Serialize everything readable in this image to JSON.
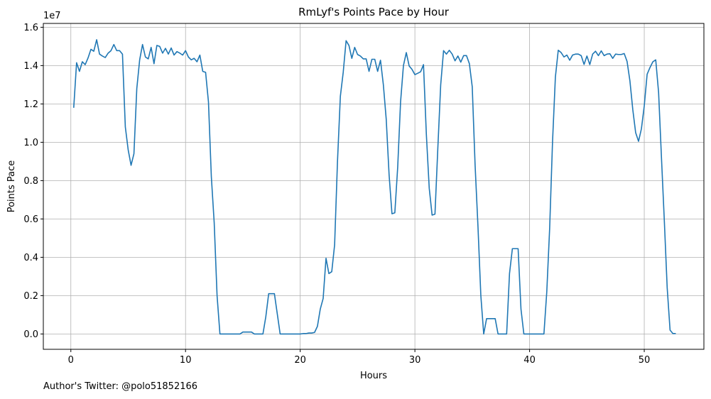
{
  "chart_data": {
    "type": "line",
    "title": "RmLyf's Points Pace by Hour",
    "xlabel": "Hours",
    "ylabel": "Points Pace",
    "y_offset_label": "1e7",
    "xlim": [
      -2.4,
      55.2
    ],
    "ylim": [
      -800000,
      16200000
    ],
    "x_ticks": [
      0,
      10,
      20,
      30,
      40,
      50
    ],
    "y_ticks": [
      0,
      2000000,
      4000000,
      6000000,
      8000000,
      10000000,
      12000000,
      14000000,
      16000000
    ],
    "x_tick_labels": [
      "0",
      "10",
      "20",
      "30",
      "40",
      "50"
    ],
    "y_tick_labels": [
      "0.0",
      "0.2",
      "0.4",
      "0.6",
      "0.8",
      "1.0",
      "1.2",
      "1.4",
      "1.6"
    ],
    "grid": true,
    "line_color": "#1f77b4",
    "series": [
      {
        "x": [
          0.25,
          0.5,
          0.75,
          1.0,
          1.25,
          1.5,
          1.75,
          2.0,
          2.25,
          2.5,
          2.75,
          3.0,
          3.25,
          3.5,
          3.75,
          4.0,
          4.25,
          4.5,
          4.75,
          5.0,
          5.25,
          5.5,
          5.75,
          6.0,
          6.25,
          6.5,
          6.75,
          7.0,
          7.25,
          7.5,
          7.75,
          8.0,
          8.25,
          8.5,
          8.75,
          9.0,
          9.25,
          9.5,
          9.75,
          10.0,
          10.25,
          10.5,
          10.75,
          11.0,
          11.25,
          11.5,
          11.75,
          12.0,
          12.25,
          12.5,
          12.75,
          13.0,
          14.5,
          14.75,
          15.0,
          15.25,
          15.5,
          15.75,
          16.0,
          16.25,
          16.5,
          16.75,
          17.0,
          17.25,
          17.5,
          17.75,
          18.0,
          18.25,
          19.5,
          19.75,
          20.0,
          20.25,
          20.5,
          20.75,
          21.0,
          21.25,
          21.5,
          21.75,
          22.0,
          22.25,
          22.5,
          22.75,
          23.0,
          23.25,
          23.5,
          23.75,
          24.0,
          24.25,
          24.5,
          24.75,
          25.0,
          25.25,
          25.5,
          25.75,
          26.0,
          26.25,
          26.5,
          26.75,
          27.0,
          27.25,
          27.5,
          27.75,
          28.0,
          28.25,
          28.5,
          28.75,
          29.0,
          29.25,
          29.5,
          29.75,
          30.0,
          30.25,
          30.5,
          30.75,
          31.0,
          31.25,
          31.5,
          31.75,
          32.0,
          32.25,
          32.5,
          32.75,
          33.0,
          33.25,
          33.5,
          33.75,
          34.0,
          34.25,
          34.5,
          34.75,
          35.0,
          35.25,
          35.5,
          35.75,
          36.0,
          36.25,
          36.5,
          36.75,
          37.0,
          37.25,
          37.5,
          37.75,
          38.0,
          38.25,
          38.5,
          38.75,
          39.0,
          39.25,
          39.5,
          39.75,
          40.0,
          40.25,
          40.5,
          40.75,
          41.0,
          41.25,
          41.5,
          41.75,
          42.0,
          42.25,
          42.5,
          42.75,
          43.0,
          43.25,
          43.5,
          43.75,
          44.0,
          44.25,
          44.5,
          44.75,
          45.0,
          45.25,
          45.5,
          45.75,
          46.0,
          46.25,
          46.5,
          46.75,
          47.0,
          47.25,
          47.5,
          47.75,
          48.0,
          48.25,
          48.5,
          48.75,
          49.0,
          49.25,
          49.5,
          49.75,
          50.0,
          50.25,
          50.5,
          50.75,
          51.0,
          51.25,
          51.5,
          51.75,
          52.0,
          52.25,
          52.5,
          52.75
        ],
        "y": [
          11800000,
          14150000,
          13700000,
          14200000,
          14050000,
          14400000,
          14850000,
          14750000,
          15350000,
          14600000,
          14500000,
          14420000,
          14650000,
          14780000,
          15100000,
          14780000,
          14780000,
          14600000,
          10800000,
          9600000,
          8800000,
          9400000,
          12800000,
          14300000,
          15100000,
          14450000,
          14350000,
          14950000,
          14100000,
          15050000,
          15000000,
          14650000,
          14900000,
          14600000,
          14920000,
          14550000,
          14730000,
          14650000,
          14550000,
          14780000,
          14450000,
          14300000,
          14380000,
          14200000,
          14550000,
          13700000,
          13650000,
          12100000,
          8200000,
          5800000,
          2000000,
          0,
          0,
          0,
          100000,
          100000,
          100000,
          100000,
          0,
          0,
          0,
          0,
          900000,
          2100000,
          2100000,
          2100000,
          1050000,
          0,
          0,
          0,
          0,
          20000,
          20000,
          50000,
          50000,
          80000,
          400000,
          1300000,
          1850000,
          3950000,
          3150000,
          3250000,
          4650000,
          9000000,
          12400000,
          13650000,
          15300000,
          15050000,
          14380000,
          14950000,
          14580000,
          14500000,
          14350000,
          14350000,
          13700000,
          14330000,
          14330000,
          13700000,
          14280000,
          13000000,
          11200000,
          8300000,
          6270000,
          6320000,
          8700000,
          12100000,
          14000000,
          14680000,
          13980000,
          13800000,
          13530000,
          13600000,
          13680000,
          14050000,
          10400000,
          7600000,
          6200000,
          6250000,
          9700000,
          13000000,
          14780000,
          14600000,
          14800000,
          14600000,
          14250000,
          14500000,
          14180000,
          14520000,
          14520000,
          14100000,
          12900000,
          8800000,
          5600000,
          2000000,
          0,
          800000,
          800000,
          800000,
          800000,
          0,
          0,
          0,
          0,
          3150000,
          4450000,
          4450000,
          4450000,
          1300000,
          0,
          0,
          0,
          0,
          0,
          0,
          0,
          0,
          2200000,
          5500000,
          10000000,
          13400000,
          14800000,
          14680000,
          14450000,
          14550000,
          14280000,
          14550000,
          14600000,
          14600000,
          14520000,
          14060000,
          14500000,
          14050000,
          14600000,
          14750000,
          14520000,
          14770000,
          14520000,
          14600000,
          14620000,
          14380000,
          14600000,
          14580000,
          14580000,
          14630000,
          14220000,
          13200000,
          11700000,
          10500000,
          10050000,
          10700000,
          11900000,
          13550000,
          13900000,
          14200000,
          14300000,
          12600000,
          9200000,
          5900000,
          2400000,
          200000,
          20000,
          20000
        ]
      }
    ]
  },
  "footer": {
    "author": "Author's Twitter: @polo51852166"
  }
}
